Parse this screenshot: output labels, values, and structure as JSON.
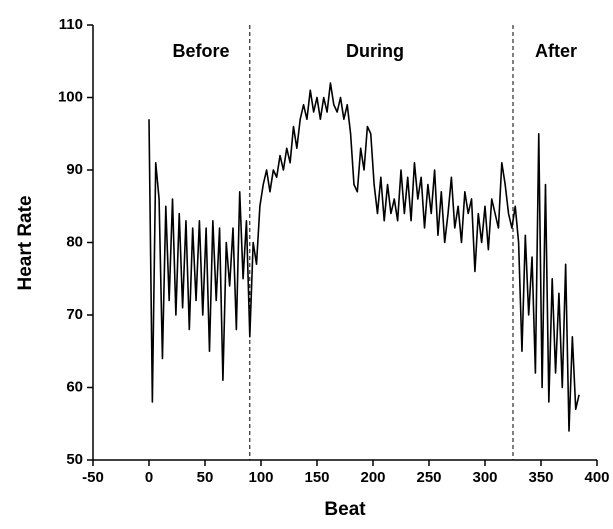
{
  "chart_data": {
    "type": "line",
    "xlabel": "Beat",
    "ylabel": "Heart Rate",
    "annotations": [
      "Before",
      "During",
      "After"
    ],
    "dividers": [
      90,
      325
    ],
    "xlim": [
      -50,
      400
    ],
    "xticks": [
      -50,
      0,
      50,
      100,
      150,
      200,
      250,
      300,
      350,
      400
    ],
    "ylim": [
      50,
      110
    ],
    "yticks": [
      50,
      60,
      70,
      80,
      90,
      100,
      110
    ],
    "grid": false,
    "series": [
      {
        "color": "#000000",
        "x": [
          0,
          3,
          6,
          9,
          12,
          15,
          18,
          21,
          24,
          27,
          30,
          33,
          36,
          39,
          42,
          45,
          48,
          51,
          54,
          57,
          60,
          63,
          66,
          69,
          72,
          75,
          78,
          81,
          84,
          87,
          90,
          93,
          96,
          99,
          102,
          105,
          108,
          111,
          114,
          117,
          120,
          123,
          126,
          129,
          132,
          135,
          138,
          141,
          144,
          147,
          150,
          153,
          156,
          159,
          162,
          165,
          168,
          171,
          174,
          177,
          180,
          183,
          186,
          189,
          192,
          195,
          198,
          201,
          204,
          207,
          210,
          213,
          216,
          219,
          222,
          225,
          228,
          231,
          234,
          237,
          240,
          243,
          246,
          249,
          252,
          255,
          258,
          261,
          264,
          267,
          270,
          273,
          276,
          279,
          282,
          285,
          288,
          291,
          294,
          297,
          300,
          303,
          306,
          309,
          312,
          315,
          318,
          321,
          324,
          327,
          330,
          333,
          336,
          339,
          342,
          345,
          348,
          351,
          354,
          357,
          360,
          363,
          366,
          369,
          372,
          375,
          378,
          381,
          384
        ],
        "values": [
          97,
          58,
          91,
          86,
          64,
          85,
          72,
          86,
          70,
          84,
          71,
          83,
          68,
          82,
          72,
          83,
          70,
          82,
          65,
          83,
          72,
          82,
          61,
          80,
          74,
          82,
          68,
          87,
          75,
          83,
          67,
          80,
          77,
          85,
          88,
          90,
          87,
          90,
          89,
          92,
          90,
          93,
          91,
          96,
          93,
          97,
          99,
          97,
          101,
          98,
          100,
          97,
          100,
          98,
          102,
          99,
          98,
          100,
          97,
          99,
          95,
          88,
          87,
          93,
          90,
          96,
          95,
          88,
          84,
          89,
          83,
          88,
          84,
          86,
          83,
          90,
          84,
          89,
          83,
          91,
          86,
          89,
          82,
          88,
          84,
          90,
          81,
          87,
          80,
          84,
          89,
          82,
          85,
          80,
          87,
          84,
          86,
          76,
          84,
          80,
          85,
          79,
          86,
          84,
          82,
          91,
          88,
          84,
          82,
          85,
          80,
          65,
          81,
          70,
          78,
          62,
          95,
          60,
          88,
          58,
          75,
          62,
          73,
          60,
          77,
          54,
          67,
          57,
          59
        ]
      }
    ]
  }
}
